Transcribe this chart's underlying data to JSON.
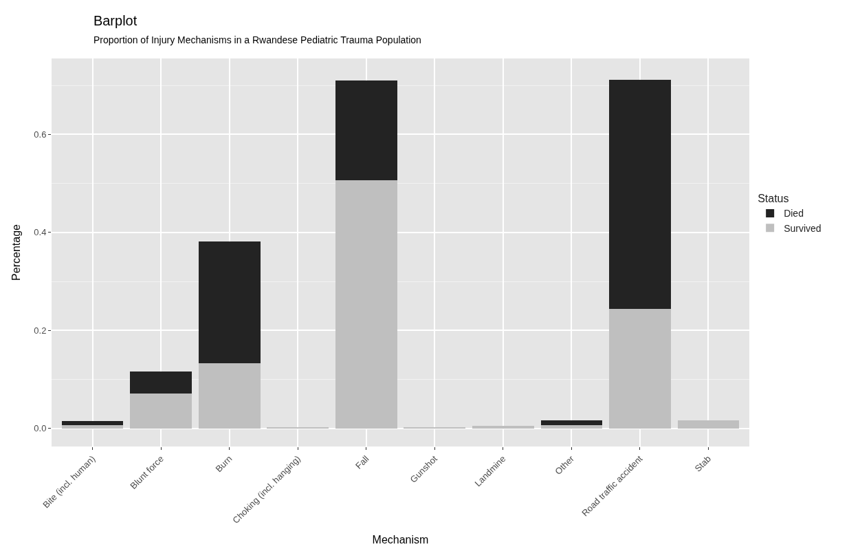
{
  "chart_data": {
    "type": "bar",
    "title": "Barplot",
    "subtitle": "Proportion of Injury Mechanisms in a Rwandese Pediatric Trauma Population",
    "xlabel": "Mechanism",
    "ylabel": "Percentage",
    "legend_title": "Status",
    "categories": [
      "Bite (incl. human)",
      "Blunt force",
      "Burn",
      "Choking (incl. hanging)",
      "Fall",
      "Gunshot",
      "Landmine",
      "Other",
      "Road traffic accident",
      "Stab"
    ],
    "stacked": true,
    "series": [
      {
        "name": "Survived",
        "color": "#bfbfbf",
        "values": [
          0.007,
          0.071,
          0.133,
          0.001,
          0.507,
          0.001,
          0.005,
          0.007,
          0.244,
          0.016
        ]
      },
      {
        "name": "Died",
        "color": "#232323",
        "values": [
          0.008,
          0.045,
          0.248,
          0,
          0.203,
          0,
          0,
          0.009,
          0.468,
          0
        ]
      }
    ],
    "ylim": [
      -0.037,
      0.755
    ],
    "yticks": [
      {
        "value": 0,
        "label": "0.0"
      },
      {
        "value": 0.2,
        "label": "0.2"
      },
      {
        "value": 0.4,
        "label": "0.4"
      },
      {
        "value": 0.6,
        "label": "0.6"
      }
    ],
    "grid": true,
    "legend": "right"
  }
}
